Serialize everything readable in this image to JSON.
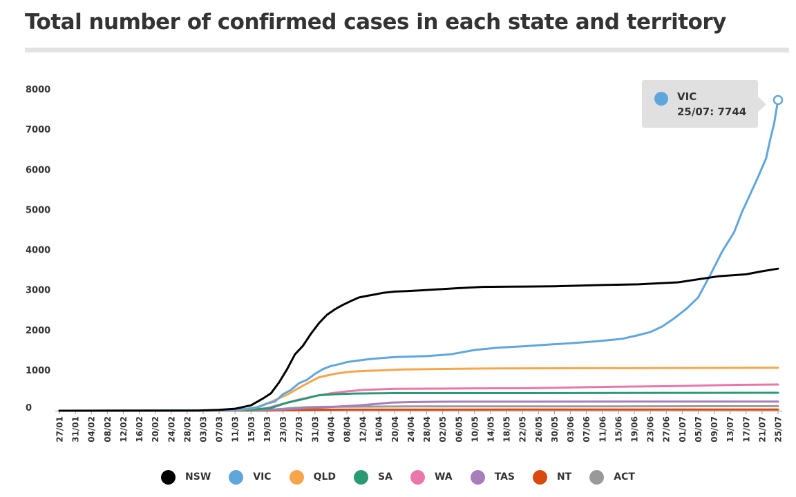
{
  "page": {
    "title": "Total number of confirmed cases in each state and territory"
  },
  "tooltip": {
    "series": "VIC",
    "date": "25/07",
    "value": 7744,
    "text": "25/07: 7744",
    "color": "#5fa6dc"
  },
  "chart_data": {
    "type": "line",
    "title": "Total number of confirmed cases in each state and territory",
    "xlabel": "",
    "ylabel": "",
    "ylim": [
      0,
      8000
    ],
    "y_ticks": [
      0,
      1000,
      2000,
      3000,
      4000,
      5000,
      6000,
      7000,
      8000
    ],
    "x_range": {
      "start": "27/01",
      "end": "25/07",
      "num_days": 181
    },
    "x_tick_labels": [
      "27/01",
      "31/01",
      "04/02",
      "08/02",
      "12/02",
      "16/02",
      "20/02",
      "24/02",
      "28/02",
      "03/03",
      "07/03",
      "11/03",
      "15/03",
      "19/03",
      "23/03",
      "27/03",
      "31/03",
      "04/04",
      "08/04",
      "12/04",
      "16/04",
      "20/04",
      "24/04",
      "28/04",
      "02/05",
      "06/05",
      "10/05",
      "14/05",
      "18/05",
      "22/05",
      "26/05",
      "30/05",
      "03/06",
      "07/06",
      "11/06",
      "15/06",
      "19/06",
      "23/06",
      "27/06",
      "01/07",
      "05/07",
      "09/07",
      "13/07",
      "17/07",
      "21/07",
      "25/07"
    ],
    "legend_position": "bottom",
    "grid": false,
    "series": [
      {
        "name": "NSW",
        "color": "#000000",
        "points": [
          [
            "27/01",
            0
          ],
          [
            "02/03",
            3
          ],
          [
            "07/03",
            20
          ],
          [
            "11/03",
            50
          ],
          [
            "15/03",
            134
          ],
          [
            "18/03",
            307
          ],
          [
            "20/03",
            436
          ],
          [
            "22/03",
            704
          ],
          [
            "24/03",
            1029
          ],
          [
            "26/03",
            1405
          ],
          [
            "28/03",
            1617
          ],
          [
            "30/03",
            1918
          ],
          [
            "01/04",
            2182
          ],
          [
            "03/04",
            2389
          ],
          [
            "05/04",
            2527
          ],
          [
            "07/04",
            2637
          ],
          [
            "09/04",
            2734
          ],
          [
            "11/04",
            2822
          ],
          [
            "13/04",
            2863
          ],
          [
            "15/04",
            2897
          ],
          [
            "17/04",
            2936
          ],
          [
            "20/04",
            2969
          ],
          [
            "23/04",
            2982
          ],
          [
            "27/04",
            3002
          ],
          [
            "05/05",
            3051
          ],
          [
            "12/05",
            3087
          ],
          [
            "19/05",
            3092
          ],
          [
            "30/05",
            3100
          ],
          [
            "10/06",
            3131
          ],
          [
            "20/06",
            3150
          ],
          [
            "30/06",
            3200
          ],
          [
            "10/07",
            3350
          ],
          [
            "17/07",
            3400
          ],
          [
            "21/07",
            3475
          ],
          [
            "25/07",
            3540
          ]
        ]
      },
      {
        "name": "VIC",
        "color": "#5fa6dc",
        "points": [
          [
            "27/01",
            0
          ],
          [
            "02/03",
            10
          ],
          [
            "10/03",
            18
          ],
          [
            "14/03",
            49
          ],
          [
            "17/03",
            94
          ],
          [
            "19/03",
            178
          ],
          [
            "21/03",
            229
          ],
          [
            "23/03",
            411
          ],
          [
            "25/03",
            520
          ],
          [
            "27/03",
            685
          ],
          [
            "29/03",
            769
          ],
          [
            "31/03",
            917
          ],
          [
            "02/04",
            1036
          ],
          [
            "04/04",
            1115
          ],
          [
            "06/04",
            1158
          ],
          [
            "08/04",
            1212
          ],
          [
            "10/04",
            1241
          ],
          [
            "14/04",
            1291
          ],
          [
            "20/04",
            1336
          ],
          [
            "28/04",
            1361
          ],
          [
            "04/05",
            1406
          ],
          [
            "10/05",
            1514
          ],
          [
            "16/05",
            1573
          ],
          [
            "22/05",
            1603
          ],
          [
            "28/05",
            1645
          ],
          [
            "03/06",
            1681
          ],
          [
            "10/06",
            1732
          ],
          [
            "16/06",
            1792
          ],
          [
            "20/06",
            1884
          ],
          [
            "23/06",
            1959
          ],
          [
            "26/06",
            2099
          ],
          [
            "29/06",
            2303
          ],
          [
            "02/07",
            2536
          ],
          [
            "05/07",
            2824
          ],
          [
            "08/07",
            3379
          ],
          [
            "11/07",
            3967
          ],
          [
            "14/07",
            4448
          ],
          [
            "16/07",
            4960
          ],
          [
            "18/07",
            5388
          ],
          [
            "20/07",
            5827
          ],
          [
            "22/07",
            6289
          ],
          [
            "23/07",
            6739
          ],
          [
            "24/07",
            7145
          ],
          [
            "25/07",
            7744
          ]
        ]
      },
      {
        "name": "QLD",
        "color": "#f6a54a",
        "points": [
          [
            "27/01",
            0
          ],
          [
            "05/03",
            5
          ],
          [
            "12/03",
            20
          ],
          [
            "16/03",
            68
          ],
          [
            "20/03",
            221
          ],
          [
            "24/03",
            397
          ],
          [
            "28/03",
            625
          ],
          [
            "01/04",
            835
          ],
          [
            "05/04",
            921
          ],
          [
            "09/04",
            974
          ],
          [
            "13/04",
            993
          ],
          [
            "17/04",
            1007
          ],
          [
            "21/04",
            1026
          ],
          [
            "25/04",
            1033
          ],
          [
            "05/05",
            1045
          ],
          [
            "15/05",
            1055
          ],
          [
            "24/07",
            1070
          ],
          [
            "25/07",
            1071
          ]
        ]
      },
      {
        "name": "SA",
        "color": "#2a9a72",
        "points": [
          [
            "27/01",
            0
          ],
          [
            "06/03",
            3
          ],
          [
            "15/03",
            20
          ],
          [
            "20/03",
            67
          ],
          [
            "24/03",
            197
          ],
          [
            "28/03",
            287
          ],
          [
            "01/04",
            385
          ],
          [
            "05/04",
            411
          ],
          [
            "10/04",
            428
          ],
          [
            "20/04",
            438
          ],
          [
            "01/05",
            438
          ],
          [
            "15/05",
            439
          ],
          [
            "25/07",
            448
          ]
        ]
      },
      {
        "name": "WA",
        "color": "#ea77aa",
        "points": [
          [
            "27/01",
            0
          ],
          [
            "08/03",
            3
          ],
          [
            "15/03",
            18
          ],
          [
            "19/03",
            64
          ],
          [
            "23/03",
            175
          ],
          [
            "27/03",
            278
          ],
          [
            "31/03",
            364
          ],
          [
            "04/04",
            436
          ],
          [
            "08/04",
            481
          ],
          [
            "12/04",
            517
          ],
          [
            "20/04",
            546
          ],
          [
            "30/04",
            551
          ],
          [
            "10/05",
            557
          ],
          [
            "25/05",
            563
          ],
          [
            "15/06",
            599
          ],
          [
            "30/06",
            616
          ],
          [
            "15/07",
            645
          ],
          [
            "25/07",
            654
          ]
        ]
      },
      {
        "name": "TAS",
        "color": "#a77dbb",
        "points": [
          [
            "27/01",
            0
          ],
          [
            "10/03",
            2
          ],
          [
            "18/03",
            13
          ],
          [
            "22/03",
            28
          ],
          [
            "26/03",
            47
          ],
          [
            "30/03",
            69
          ],
          [
            "03/04",
            86
          ],
          [
            "07/04",
            111
          ],
          [
            "11/04",
            133
          ],
          [
            "15/04",
            165
          ],
          [
            "19/04",
            201
          ],
          [
            "23/04",
            214
          ],
          [
            "27/04",
            221
          ],
          [
            "05/05",
            225
          ],
          [
            "25/07",
            229
          ]
        ]
      },
      {
        "name": "NT",
        "color": "#d94a0c",
        "points": [
          [
            "27/01",
            0
          ],
          [
            "10/03",
            1
          ],
          [
            "20/03",
            4
          ],
          [
            "25/03",
            12
          ],
          [
            "01/04",
            26
          ],
          [
            "10/04",
            28
          ],
          [
            "20/05",
            29
          ],
          [
            "25/07",
            31
          ]
        ]
      },
      {
        "name": "ACT",
        "color": "#999999",
        "points": [
          [
            "27/01",
            0
          ],
          [
            "12/03",
            1
          ],
          [
            "17/03",
            7
          ],
          [
            "21/03",
            32
          ],
          [
            "25/03",
            63
          ],
          [
            "29/03",
            87
          ],
          [
            "02/04",
            96
          ],
          [
            "06/04",
            100
          ],
          [
            "15/04",
            103
          ],
          [
            "25/04",
            106
          ],
          [
            "15/06",
            108
          ],
          [
            "25/07",
            113
          ]
        ]
      }
    ]
  }
}
